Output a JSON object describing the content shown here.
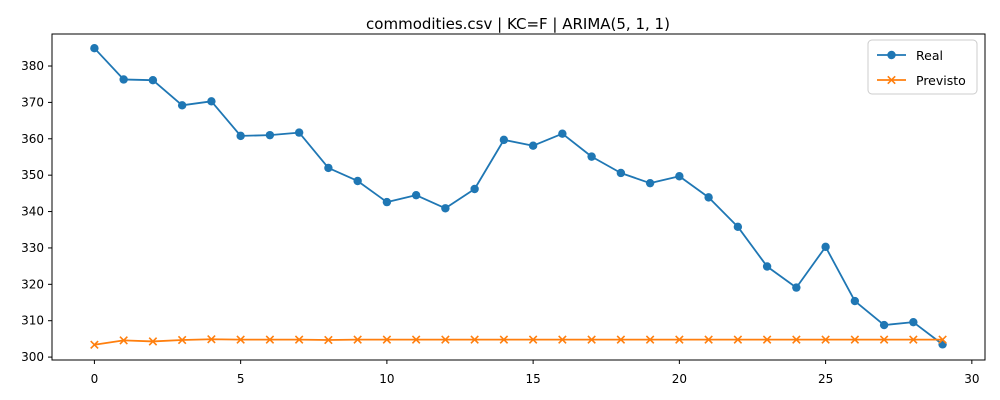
{
  "chart_data": {
    "type": "line",
    "title": "commodities.csv | KC=F | ARIMA(5, 1, 1)",
    "xlabel": "",
    "ylabel": "",
    "x": [
      0,
      1,
      2,
      3,
      4,
      5,
      6,
      7,
      8,
      9,
      10,
      11,
      12,
      13,
      14,
      15,
      16,
      17,
      18,
      19,
      20,
      21,
      22,
      23,
      24,
      25,
      26,
      27,
      28,
      29
    ],
    "xlim": [
      -1.45,
      30.45
    ],
    "ylim": [
      299.2,
      388.8
    ],
    "xticks": [
      0,
      5,
      10,
      15,
      20,
      25,
      30
    ],
    "yticks": [
      300,
      310,
      320,
      330,
      340,
      350,
      360,
      370,
      380
    ],
    "xtick_labels": [
      "0",
      "5",
      "10",
      "15",
      "20",
      "25",
      "30"
    ],
    "ytick_labels": [
      "300",
      "310",
      "320",
      "330",
      "340",
      "350",
      "360",
      "370",
      "380"
    ],
    "grid": false,
    "legend_position": "top-right",
    "series": [
      {
        "name": "Real",
        "color": "#1f77b4",
        "marker": "circle",
        "values": [
          384.9,
          376.3,
          376.1,
          369.2,
          370.3,
          360.8,
          361.0,
          361.7,
          352.0,
          348.4,
          342.6,
          344.5,
          340.9,
          346.2,
          359.7,
          358.1,
          361.4,
          355.1,
          350.6,
          347.8,
          349.7,
          343.9,
          335.8,
          324.9,
          319.1,
          330.3,
          315.4,
          308.8,
          309.6,
          303.5
        ]
      },
      {
        "name": "Previsto",
        "color": "#ff7f0e",
        "marker": "x",
        "values": [
          303.4,
          304.6,
          304.3,
          304.7,
          304.9,
          304.8,
          304.8,
          304.8,
          304.7,
          304.8,
          304.8,
          304.8,
          304.8,
          304.8,
          304.8,
          304.8,
          304.8,
          304.8,
          304.8,
          304.8,
          304.8,
          304.8,
          304.8,
          304.8,
          304.8,
          304.8,
          304.8,
          304.8,
          304.8,
          304.8
        ]
      }
    ]
  }
}
